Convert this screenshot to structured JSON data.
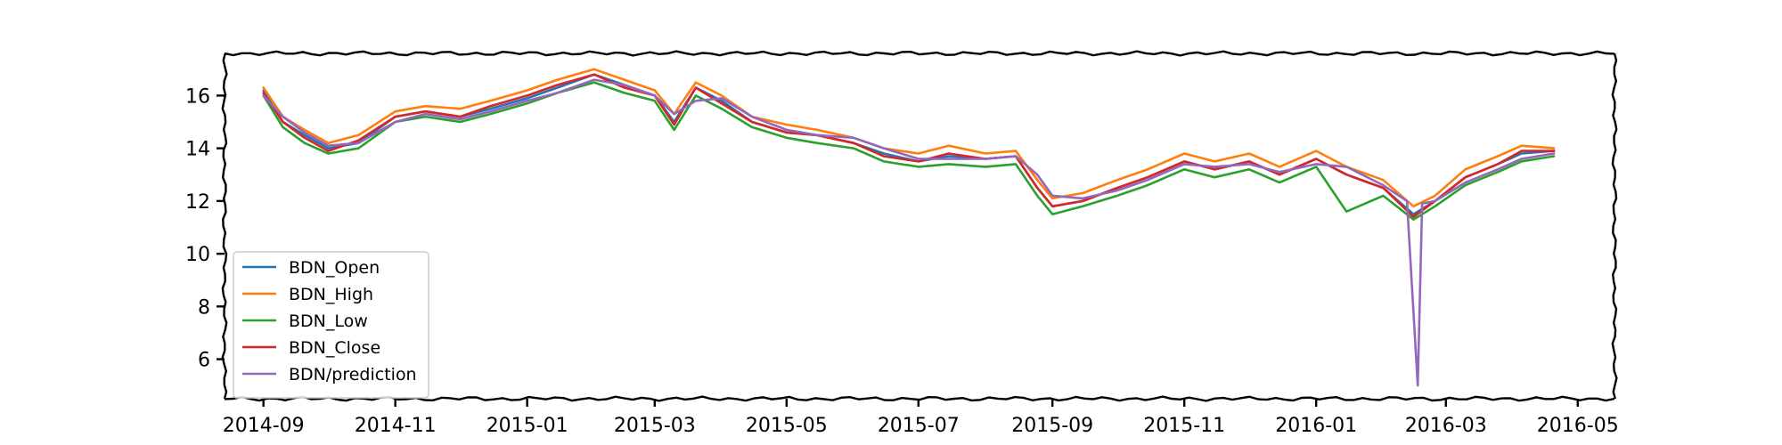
{
  "chart_data": {
    "type": "line",
    "title": "",
    "xlabel": "",
    "ylabel": "",
    "x_ticks": [
      "2014-09",
      "2014-11",
      "2015-01",
      "2015-03",
      "2015-05",
      "2015-07",
      "2015-09",
      "2015-11",
      "2016-01",
      "2016-03",
      "2016-05"
    ],
    "y_ticks": [
      6,
      8,
      10,
      12,
      14,
      16
    ],
    "ylim": [
      4.5,
      17.6
    ],
    "xlim": [
      "2014-08-14",
      "2016-05-18"
    ],
    "legend_position": "lower-left",
    "grid": false,
    "series": [
      {
        "name": "BDN_Open",
        "color": "#1f77b4",
        "points": [
          [
            "2014-09-01",
            16.2
          ],
          [
            "2014-09-10",
            15.0
          ],
          [
            "2014-09-20",
            14.5
          ],
          [
            "2014-10-01",
            14.0
          ],
          [
            "2014-10-15",
            14.2
          ],
          [
            "2014-11-01",
            15.2
          ],
          [
            "2014-11-15",
            15.4
          ],
          [
            "2014-12-01",
            15.2
          ],
          [
            "2014-12-15",
            15.5
          ],
          [
            "2015-01-01",
            15.9
          ],
          [
            "2015-01-15",
            16.3
          ],
          [
            "2015-02-01",
            16.8
          ],
          [
            "2015-02-15",
            16.4
          ],
          [
            "2015-03-01",
            16.0
          ],
          [
            "2015-03-10",
            15.0
          ],
          [
            "2015-03-20",
            16.3
          ],
          [
            "2015-04-01",
            15.8
          ],
          [
            "2015-04-15",
            15.0
          ],
          [
            "2015-05-01",
            14.6
          ],
          [
            "2015-05-15",
            14.5
          ],
          [
            "2015-06-01",
            14.2
          ],
          [
            "2015-06-15",
            13.8
          ],
          [
            "2015-07-01",
            13.5
          ],
          [
            "2015-07-15",
            13.7
          ],
          [
            "2015-08-01",
            13.6
          ],
          [
            "2015-08-15",
            13.7
          ],
          [
            "2015-08-25",
            12.5
          ],
          [
            "2015-09-01",
            11.8
          ],
          [
            "2015-09-15",
            12.0
          ],
          [
            "2015-10-01",
            12.5
          ],
          [
            "2015-10-15",
            12.9
          ],
          [
            "2015-11-01",
            13.5
          ],
          [
            "2015-11-15",
            13.2
          ],
          [
            "2015-12-01",
            13.5
          ],
          [
            "2015-12-15",
            13.0
          ],
          [
            "2016-01-01",
            13.6
          ],
          [
            "2016-01-15",
            13.0
          ],
          [
            "2016-02-01",
            12.5
          ],
          [
            "2016-02-15",
            11.5
          ],
          [
            "2016-02-25",
            12.0
          ],
          [
            "2016-03-10",
            12.9
          ],
          [
            "2016-03-25",
            13.4
          ],
          [
            "2016-04-05",
            13.8
          ],
          [
            "2016-04-20",
            13.9
          ]
        ]
      },
      {
        "name": "BDN_High",
        "color": "#ff7f0e",
        "points": [
          [
            "2014-09-01",
            16.3
          ],
          [
            "2014-09-10",
            15.2
          ],
          [
            "2014-09-20",
            14.7
          ],
          [
            "2014-10-01",
            14.2
          ],
          [
            "2014-10-15",
            14.5
          ],
          [
            "2014-11-01",
            15.4
          ],
          [
            "2014-11-15",
            15.6
          ],
          [
            "2014-12-01",
            15.5
          ],
          [
            "2014-12-15",
            15.8
          ],
          [
            "2015-01-01",
            16.2
          ],
          [
            "2015-01-15",
            16.6
          ],
          [
            "2015-02-01",
            17.0
          ],
          [
            "2015-02-15",
            16.6
          ],
          [
            "2015-03-01",
            16.2
          ],
          [
            "2015-03-10",
            15.3
          ],
          [
            "2015-03-20",
            16.5
          ],
          [
            "2015-04-01",
            16.0
          ],
          [
            "2015-04-15",
            15.2
          ],
          [
            "2015-05-01",
            14.9
          ],
          [
            "2015-05-15",
            14.7
          ],
          [
            "2015-06-01",
            14.4
          ],
          [
            "2015-06-15",
            14.0
          ],
          [
            "2015-07-01",
            13.8
          ],
          [
            "2015-07-15",
            14.1
          ],
          [
            "2015-08-01",
            13.8
          ],
          [
            "2015-08-15",
            13.9
          ],
          [
            "2015-08-25",
            12.8
          ],
          [
            "2015-09-01",
            12.1
          ],
          [
            "2015-09-15",
            12.3
          ],
          [
            "2015-10-01",
            12.8
          ],
          [
            "2015-10-15",
            13.2
          ],
          [
            "2015-11-01",
            13.8
          ],
          [
            "2015-11-15",
            13.5
          ],
          [
            "2015-12-01",
            13.8
          ],
          [
            "2015-12-15",
            13.3
          ],
          [
            "2016-01-01",
            13.9
          ],
          [
            "2016-01-15",
            13.3
          ],
          [
            "2016-02-01",
            12.8
          ],
          [
            "2016-02-15",
            11.8
          ],
          [
            "2016-02-25",
            12.2
          ],
          [
            "2016-03-10",
            13.2
          ],
          [
            "2016-03-25",
            13.7
          ],
          [
            "2016-04-05",
            14.1
          ],
          [
            "2016-04-20",
            14.0
          ]
        ]
      },
      {
        "name": "BDN_Low",
        "color": "#2ca02c",
        "points": [
          [
            "2014-09-01",
            16.0
          ],
          [
            "2014-09-10",
            14.8
          ],
          [
            "2014-09-20",
            14.2
          ],
          [
            "2014-10-01",
            13.8
          ],
          [
            "2014-10-15",
            14.0
          ],
          [
            "2014-11-01",
            15.0
          ],
          [
            "2014-11-15",
            15.2
          ],
          [
            "2014-12-01",
            15.0
          ],
          [
            "2014-12-15",
            15.3
          ],
          [
            "2015-01-01",
            15.7
          ],
          [
            "2015-01-15",
            16.1
          ],
          [
            "2015-02-01",
            16.5
          ],
          [
            "2015-02-15",
            16.1
          ],
          [
            "2015-03-01",
            15.8
          ],
          [
            "2015-03-10",
            14.7
          ],
          [
            "2015-03-20",
            16.0
          ],
          [
            "2015-04-01",
            15.5
          ],
          [
            "2015-04-15",
            14.8
          ],
          [
            "2015-05-01",
            14.4
          ],
          [
            "2015-05-15",
            14.2
          ],
          [
            "2015-06-01",
            14.0
          ],
          [
            "2015-06-15",
            13.5
          ],
          [
            "2015-07-01",
            13.3
          ],
          [
            "2015-07-15",
            13.4
          ],
          [
            "2015-08-01",
            13.3
          ],
          [
            "2015-08-15",
            13.4
          ],
          [
            "2015-08-25",
            12.2
          ],
          [
            "2015-09-01",
            11.5
          ],
          [
            "2015-09-15",
            11.8
          ],
          [
            "2015-10-01",
            12.2
          ],
          [
            "2015-10-15",
            12.6
          ],
          [
            "2015-11-01",
            13.2
          ],
          [
            "2015-11-15",
            12.9
          ],
          [
            "2015-12-01",
            13.2
          ],
          [
            "2015-12-15",
            12.7
          ],
          [
            "2016-01-01",
            13.3
          ],
          [
            "2016-01-15",
            11.6
          ],
          [
            "2016-02-01",
            12.2
          ],
          [
            "2016-02-15",
            11.3
          ],
          [
            "2016-02-25",
            11.8
          ],
          [
            "2016-03-10",
            12.6
          ],
          [
            "2016-03-25",
            13.1
          ],
          [
            "2016-04-05",
            13.5
          ],
          [
            "2016-04-20",
            13.7
          ]
        ]
      },
      {
        "name": "BDN_Close",
        "color": "#d62728",
        "points": [
          [
            "2014-09-01",
            16.1
          ],
          [
            "2014-09-10",
            15.0
          ],
          [
            "2014-09-20",
            14.4
          ],
          [
            "2014-10-01",
            13.9
          ],
          [
            "2014-10-15",
            14.3
          ],
          [
            "2014-11-01",
            15.2
          ],
          [
            "2014-11-15",
            15.4
          ],
          [
            "2014-12-01",
            15.2
          ],
          [
            "2014-12-15",
            15.6
          ],
          [
            "2015-01-01",
            16.0
          ],
          [
            "2015-01-15",
            16.4
          ],
          [
            "2015-02-01",
            16.8
          ],
          [
            "2015-02-15",
            16.3
          ],
          [
            "2015-03-01",
            16.0
          ],
          [
            "2015-03-10",
            14.9
          ],
          [
            "2015-03-20",
            16.3
          ],
          [
            "2015-04-01",
            15.7
          ],
          [
            "2015-04-15",
            15.0
          ],
          [
            "2015-05-01",
            14.6
          ],
          [
            "2015-05-15",
            14.5
          ],
          [
            "2015-06-01",
            14.2
          ],
          [
            "2015-06-15",
            13.7
          ],
          [
            "2015-07-01",
            13.5
          ],
          [
            "2015-07-15",
            13.8
          ],
          [
            "2015-08-01",
            13.6
          ],
          [
            "2015-08-15",
            13.7
          ],
          [
            "2015-08-25",
            12.5
          ],
          [
            "2015-09-01",
            11.8
          ],
          [
            "2015-09-15",
            12.0
          ],
          [
            "2015-10-01",
            12.5
          ],
          [
            "2015-10-15",
            12.9
          ],
          [
            "2015-11-01",
            13.5
          ],
          [
            "2015-11-15",
            13.2
          ],
          [
            "2015-12-01",
            13.5
          ],
          [
            "2015-12-15",
            13.0
          ],
          [
            "2016-01-01",
            13.6
          ],
          [
            "2016-01-15",
            13.0
          ],
          [
            "2016-02-01",
            12.5
          ],
          [
            "2016-02-15",
            11.4
          ],
          [
            "2016-02-25",
            12.0
          ],
          [
            "2016-03-10",
            12.9
          ],
          [
            "2016-03-25",
            13.4
          ],
          [
            "2016-04-05",
            13.9
          ],
          [
            "2016-04-20",
            13.9
          ]
        ]
      },
      {
        "name": "BDN/prediction",
        "color": "#9467bd",
        "points": [
          [
            "2014-09-01",
            16.0
          ],
          [
            "2014-09-10",
            15.2
          ],
          [
            "2014-09-20",
            14.6
          ],
          [
            "2014-10-01",
            14.1
          ],
          [
            "2014-10-15",
            14.2
          ],
          [
            "2014-11-01",
            15.0
          ],
          [
            "2014-11-15",
            15.3
          ],
          [
            "2014-12-01",
            15.1
          ],
          [
            "2014-12-15",
            15.4
          ],
          [
            "2015-01-01",
            15.8
          ],
          [
            "2015-01-15",
            16.1
          ],
          [
            "2015-02-01",
            16.6
          ],
          [
            "2015-02-15",
            16.4
          ],
          [
            "2015-03-01",
            16.0
          ],
          [
            "2015-03-10",
            15.3
          ],
          [
            "2015-03-20",
            15.8
          ],
          [
            "2015-04-01",
            15.9
          ],
          [
            "2015-04-15",
            15.2
          ],
          [
            "2015-05-01",
            14.7
          ],
          [
            "2015-05-15",
            14.5
          ],
          [
            "2015-06-01",
            14.4
          ],
          [
            "2015-06-15",
            14.0
          ],
          [
            "2015-07-01",
            13.6
          ],
          [
            "2015-07-15",
            13.6
          ],
          [
            "2015-08-01",
            13.6
          ],
          [
            "2015-08-15",
            13.7
          ],
          [
            "2015-08-25",
            13.0
          ],
          [
            "2015-09-01",
            12.2
          ],
          [
            "2015-09-15",
            12.1
          ],
          [
            "2015-10-01",
            12.4
          ],
          [
            "2015-10-15",
            12.8
          ],
          [
            "2015-11-01",
            13.4
          ],
          [
            "2015-11-15",
            13.3
          ],
          [
            "2015-12-01",
            13.4
          ],
          [
            "2015-12-15",
            13.1
          ],
          [
            "2016-01-01",
            13.4
          ],
          [
            "2016-01-15",
            13.3
          ],
          [
            "2016-02-01",
            12.6
          ],
          [
            "2016-02-12",
            12.0
          ],
          [
            "2016-02-17",
            5.0
          ],
          [
            "2016-02-19",
            11.9
          ],
          [
            "2016-02-25",
            12.0
          ],
          [
            "2016-03-10",
            12.7
          ],
          [
            "2016-03-25",
            13.2
          ],
          [
            "2016-04-05",
            13.6
          ],
          [
            "2016-04-20",
            13.8
          ]
        ]
      }
    ]
  }
}
